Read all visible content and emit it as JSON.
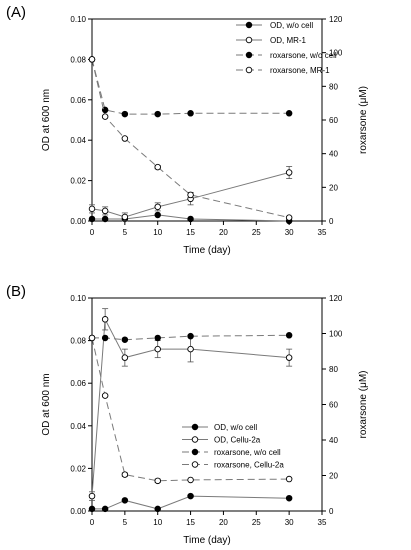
{
  "chart_data": [
    {
      "panel_label": "(A)",
      "type": "line",
      "xlabel": "Time (day)",
      "ylabel_left": "OD at 600 nm",
      "ylabel_right": "roxarsone (μM)",
      "xlim": [
        0,
        35
      ],
      "ylim_left": [
        0,
        0.1
      ],
      "ylim_right": [
        0,
        120
      ],
      "x_ticks": [
        "0",
        "5",
        "10",
        "15",
        "20",
        "25",
        "30",
        "35"
      ],
      "y_left_ticks": [
        "0.00",
        "0.02",
        "0.04",
        "0.06",
        "0.08",
        "0.10"
      ],
      "y_right_ticks": [
        "0",
        "20",
        "40",
        "60",
        "80",
        "100",
        "120"
      ],
      "legend_position": "top-right",
      "series": [
        {
          "name": "OD, w/o cell",
          "axis": "left",
          "marker": "filled",
          "line": "solid",
          "x": [
            0,
            2,
            5,
            10,
            15,
            30
          ],
          "y": [
            0.001,
            0.001,
            0.001,
            0.003,
            0.001,
            0.0
          ],
          "err": [
            0,
            0,
            0,
            0,
            0,
            0
          ]
        },
        {
          "name": "OD, MR-1",
          "axis": "left",
          "marker": "open",
          "line": "solid",
          "x": [
            0,
            2,
            5,
            10,
            15,
            30
          ],
          "y": [
            0.006,
            0.005,
            0.002,
            0.007,
            0.011,
            0.024
          ],
          "err": [
            0.002,
            0.002,
            0.002,
            0.002,
            0.003,
            0.003
          ]
        },
        {
          "name": "roxarsone, w/o cell",
          "axis": "right",
          "marker": "filled",
          "line": "dash",
          "x": [
            0,
            2,
            5,
            10,
            15,
            30
          ],
          "y": [
            96,
            66,
            63.5,
            63.5,
            64,
            64
          ],
          "err": [
            0,
            0,
            0,
            0,
            0,
            0
          ]
        },
        {
          "name": "roxarsone, MR-1",
          "axis": "right",
          "marker": "open",
          "line": "dash",
          "x": [
            0,
            2,
            5,
            10,
            15,
            30
          ],
          "y": [
            96,
            62,
            49,
            32,
            15.5,
            2
          ],
          "err": [
            0,
            0,
            0,
            1,
            1.5,
            0
          ]
        }
      ]
    },
    {
      "panel_label": "(B)",
      "type": "line",
      "xlabel": "Time (day)",
      "ylabel_left": "OD at 600 nm",
      "ylabel_right": "roxarsone (μM)",
      "xlim": [
        0,
        35
      ],
      "ylim_left": [
        0,
        0.1
      ],
      "ylim_right": [
        0,
        120
      ],
      "x_ticks": [
        "0",
        "5",
        "10",
        "15",
        "20",
        "25",
        "30",
        "35"
      ],
      "y_left_ticks": [
        "0.00",
        "0.02",
        "0.04",
        "0.06",
        "0.08",
        "0.10"
      ],
      "y_right_ticks": [
        "0",
        "20",
        "40",
        "60",
        "80",
        "100",
        "120"
      ],
      "legend_position": "center-right",
      "series": [
        {
          "name": "OD, w/o cell",
          "axis": "left",
          "marker": "filled",
          "line": "solid",
          "x": [
            0,
            2,
            5,
            10,
            15,
            30
          ],
          "y": [
            0.001,
            0.001,
            0.005,
            0.001,
            0.007,
            0.006
          ],
          "err": [
            0,
            0,
            0,
            0,
            0,
            0
          ]
        },
        {
          "name": "OD, Cellu-2a",
          "axis": "left",
          "marker": "open",
          "line": "solid",
          "x": [
            0,
            2,
            5,
            10,
            15,
            30
          ],
          "y": [
            0.007,
            0.09,
            0.072,
            0.076,
            0.076,
            0.072
          ],
          "err": [
            0.002,
            0.005,
            0.004,
            0.004,
            0.006,
            0.004
          ]
        },
        {
          "name": "roxarsone, w/o cell",
          "axis": "right",
          "marker": "filled",
          "line": "dash",
          "x": [
            0,
            2,
            5,
            10,
            15,
            30
          ],
          "y": [
            97.5,
            97.5,
            96.5,
            97.5,
            98.5,
            99
          ],
          "err": [
            0,
            0,
            0,
            0,
            0,
            0
          ]
        },
        {
          "name": "roxarsone, Cellu-2a",
          "axis": "right",
          "marker": "open",
          "line": "dash",
          "x": [
            0,
            2,
            5,
            10,
            15,
            30
          ],
          "y": [
            97.5,
            65,
            20.5,
            17,
            17.5,
            18
          ],
          "err": [
            0,
            0,
            1,
            1,
            0,
            0
          ]
        }
      ]
    }
  ]
}
